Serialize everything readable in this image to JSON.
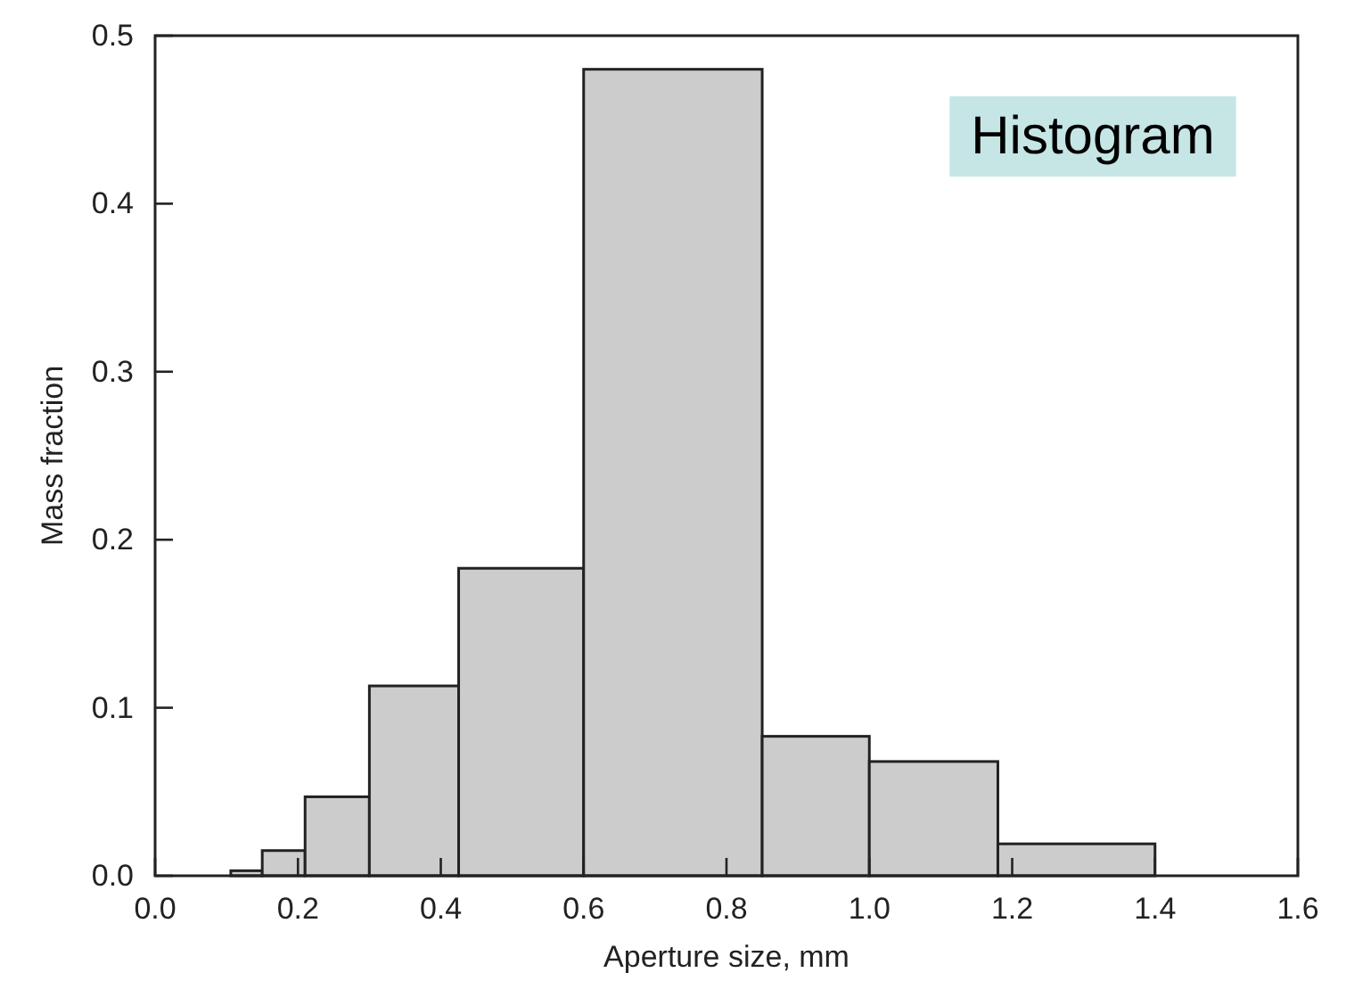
{
  "chart_data": {
    "type": "histogram",
    "xlabel": "Aperture size, mm",
    "ylabel": "Mass fraction",
    "bins": [
      0.106,
      0.15,
      0.21,
      0.3,
      0.425,
      0.6,
      0.85,
      1.0,
      1.18,
      1.4
    ],
    "values": [
      0.003,
      0.015,
      0.047,
      0.113,
      0.183,
      0.48,
      0.083,
      0.068,
      0.019
    ],
    "color": "#cccccc",
    "xlim": [
      0,
      1.6
    ],
    "xticks": [
      {
        "value": 0,
        "label": "0.0"
      },
      0.2,
      0.4,
      0.6,
      0.8,
      {
        "value": 1,
        "label": "1.0"
      },
      1.2,
      1.4,
      1.6
    ],
    "ylim": [
      0,
      0.5
    ],
    "yticks": [
      {
        "value": 0,
        "label": "0.0"
      },
      0.1,
      0.2,
      0.3,
      0.4,
      0.5
    ],
    "annotations": [
      "Histogram"
    ],
    "grid": false
  }
}
